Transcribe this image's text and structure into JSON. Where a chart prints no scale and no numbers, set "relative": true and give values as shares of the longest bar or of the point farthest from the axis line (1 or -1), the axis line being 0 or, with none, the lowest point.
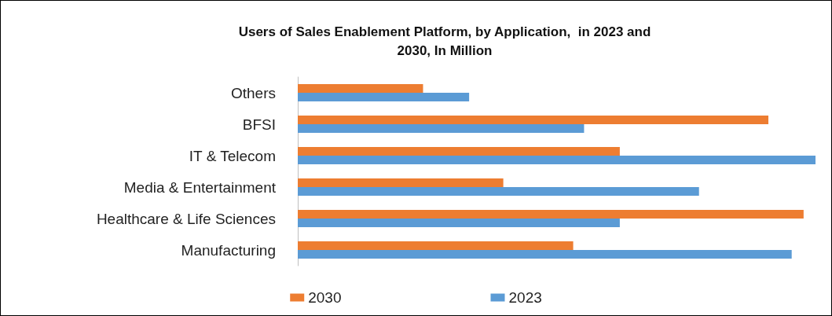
{
  "chart_data": {
    "type": "bar",
    "orientation": "horizontal",
    "relative": true,
    "title": "Users of Sales Enablement Platform, by Application,  in 2023 and\n2030, In Million",
    "categories": [
      "Others",
      "BFSI",
      "IT & Telecom",
      "Media & Entertainment",
      "Healthcare & Life Sciences",
      "Manufacturing"
    ],
    "series": [
      {
        "name": "2030",
        "color": "#ed7d31",
        "values": [
          0.242,
          0.909,
          0.622,
          0.397,
          0.977,
          0.532
        ]
      },
      {
        "name": "2023",
        "color": "#5b9bd5",
        "values": [
          0.331,
          0.553,
          1.0,
          0.775,
          0.622,
          0.954
        ]
      }
    ],
    "legend": "bottom"
  }
}
